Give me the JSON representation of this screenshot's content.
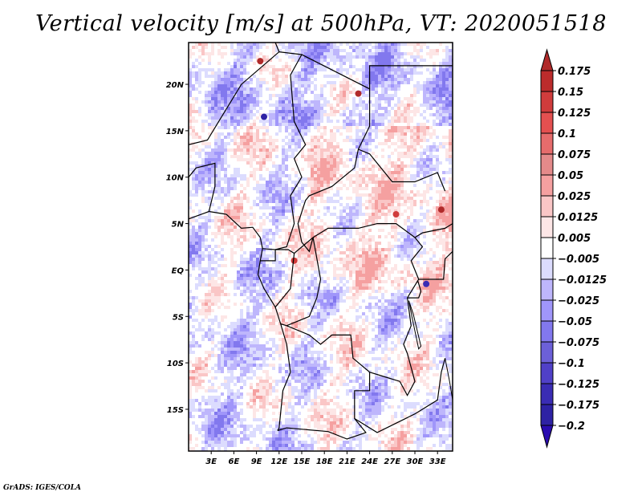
{
  "title": "Vertical velocity [m/s] at 500hPa, VT: 2020051518",
  "credit": "GrADS: IGES/COLA",
  "chart_data": {
    "type": "heatmap",
    "title": "Vertical velocity [m/s] at 500hPa, VT: 2020051518",
    "variable": "Vertical velocity",
    "units": "m/s",
    "level": "500hPa",
    "valid_time": "2020051518",
    "projection": "lat-lon",
    "lon_range": [
      0,
      35
    ],
    "lat_range": [
      -19.5,
      24.5
    ],
    "x_ticks": [
      {
        "value": 3,
        "label": "3E"
      },
      {
        "value": 6,
        "label": "6E"
      },
      {
        "value": 9,
        "label": "9E"
      },
      {
        "value": 12,
        "label": "12E"
      },
      {
        "value": 15,
        "label": "15E"
      },
      {
        "value": 18,
        "label": "18E"
      },
      {
        "value": 21,
        "label": "21E"
      },
      {
        "value": 24,
        "label": "24E"
      },
      {
        "value": 27,
        "label": "27E"
      },
      {
        "value": 30,
        "label": "30E"
      },
      {
        "value": 33,
        "label": "33E"
      }
    ],
    "y_ticks": [
      {
        "value": 20,
        "label": "20N"
      },
      {
        "value": 15,
        "label": "15N"
      },
      {
        "value": 10,
        "label": "10N"
      },
      {
        "value": 5,
        "label": "5N"
      },
      {
        "value": 0,
        "label": "EQ"
      },
      {
        "value": -5,
        "label": "5S"
      },
      {
        "value": -10,
        "label": "10S"
      },
      {
        "value": -15,
        "label": "15S"
      }
    ],
    "colorbar": {
      "orientation": "vertical",
      "placement": "right",
      "extend": "both",
      "levels": [
        0.175,
        0.15,
        0.125,
        0.1,
        0.075,
        0.05,
        0.025,
        0.0125,
        0.005,
        -0.005,
        -0.0125,
        -0.025,
        -0.05,
        -0.075,
        -0.1,
        -0.125,
        -0.175,
        -0.2
      ],
      "labels": [
        "0.175",
        "0.15",
        "0.125",
        "0.1",
        "0.075",
        "0.05",
        "0.025",
        "0.0125",
        "0.005",
        "-0.005",
        "-0.0125",
        "-0.025",
        "-0.05",
        "-0.075",
        "-0.1",
        "-0.125",
        "-0.175",
        "-0.2"
      ],
      "colors": [
        "#b02a2a",
        "#bc2c2c",
        "#d03c3c",
        "#e45050",
        "#e66c6c",
        "#e48a8a",
        "#f5a0a0",
        "#fac6c6",
        "#fde6e6",
        "#ffffff",
        "#dcdcfe",
        "#beb6fc",
        "#a096fa",
        "#8278ee",
        "#6c60d8",
        "#5040c8",
        "#3a2cb4",
        "#2e22a4",
        "#2a0cb0"
      ]
    },
    "field_summary": "Mixed fine-scale ascent (red, positive) and descent (blue, negative) over Central Africa; strongest localized cores near Lake Victoria, Cameroon and northern Chad, mostly within ±0.05 m/s."
  }
}
